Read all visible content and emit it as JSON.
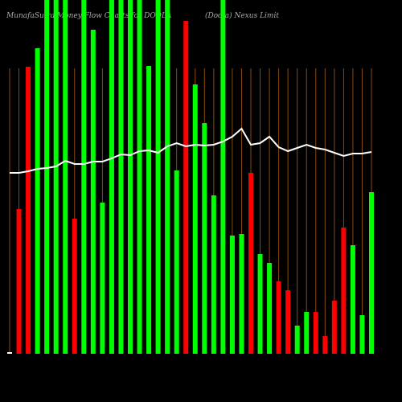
{
  "chart_data": {
    "type": "bar",
    "title": "MunafaSutra  Money Flow  Charts for  DODLA",
    "subtitle": "(Dodla) Nexus Limit",
    "categories": [
      null,
      null,
      null,
      null,
      null,
      null,
      null,
      null,
      null,
      null,
      null,
      null,
      null,
      null,
      null,
      null,
      null,
      null,
      null,
      null,
      null,
      null,
      null,
      null,
      null,
      null,
      null,
      null,
      null,
      null,
      null,
      null,
      null,
      null,
      null,
      null,
      null,
      null,
      null,
      null
    ],
    "ylim": [
      0,
      440
    ],
    "series": [
      {
        "name": "Money Flow",
        "values": [
          2,
          180,
          357,
          380,
          440,
          440,
          440,
          168,
          440,
          403,
          188,
          440,
          440,
          440,
          440,
          358,
          440,
          440,
          228,
          414,
          335,
          287,
          197,
          440,
          147,
          149,
          225,
          124,
          113,
          90,
          79,
          35,
          52,
          52,
          22,
          66,
          157,
          135,
          48,
          201
        ],
        "colors": [
          "#ffffff",
          "#ff0000",
          "#ff0000",
          "#00ff00",
          "#00ff00",
          "#00ff00",
          "#00ff00",
          "#ff0000",
          "#00ff00",
          "#00ff00",
          "#00ff00",
          "#00ff00",
          "#00ff00",
          "#00ff00",
          "#00ff00",
          "#00ff00",
          "#00ff00",
          "#00ff00",
          "#00ff00",
          "#ff0000",
          "#00ff00",
          "#00ff00",
          "#00ff00",
          "#00ff00",
          "#00ff00",
          "#00ff00",
          "#ff0000",
          "#00ff00",
          "#00ff00",
          "#ff0000",
          "#ff0000",
          "#00ff00",
          "#00ff00",
          "#ff0000",
          "#ff0000",
          "#ff0000",
          "#ff0000",
          "#00ff00",
          "#00ff00",
          "#00ff00"
        ]
      },
      {
        "name": "Price",
        "type": "line",
        "color": "#ffffff",
        "values": [
          225,
          225,
          227,
          230,
          231,
          233,
          240,
          236,
          236,
          239,
          239,
          243,
          248,
          247,
          252,
          253,
          250,
          258,
          262,
          258,
          260,
          259,
          260,
          264,
          270,
          280,
          260,
          262,
          270,
          257,
          252,
          256,
          260,
          256,
          254,
          250,
          246,
          249,
          249,
          251
        ]
      }
    ]
  }
}
